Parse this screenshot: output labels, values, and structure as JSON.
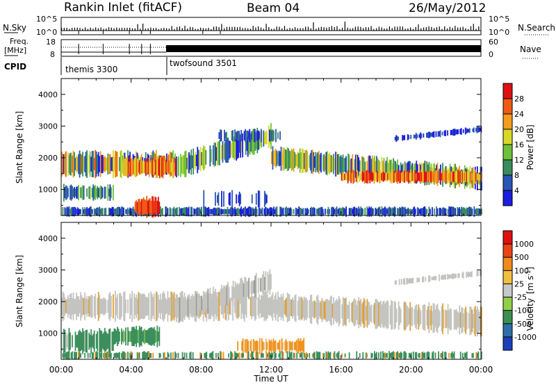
{
  "header": {
    "station": "Rankin Inlet (fitACF)",
    "beam": "Beam 04",
    "date": "26/May/2012"
  },
  "status_panels": {
    "nsky_label": "N.Sky",
    "nsearch_label": "N.Search",
    "nsky_ticks": [
      "10^5",
      "10^0"
    ],
    "nsearch_ticks": [
      "10^5",
      "10^0"
    ],
    "freq_label_1": "Freq.",
    "freq_label_2": "[MHz]",
    "freq_ticks": [
      "18",
      "8"
    ],
    "nave_label": "Nave",
    "nave_ticks": [
      "60",
      "0"
    ],
    "cpid_label": "CPID",
    "cpid_segments": [
      {
        "name": "themis 3300",
        "start_hour": 0
      },
      {
        "name": "twofsound 3501",
        "start_hour": 6
      }
    ]
  },
  "chart_data": [
    {
      "type": "heatmap",
      "title": "",
      "xlabel": "Time UT",
      "ylabel": "Slant Range [km]",
      "xlim": [
        0,
        24
      ],
      "ylim": [
        180,
        4500
      ],
      "x_ticks": [
        "00:00",
        "04:00",
        "08:00",
        "12:00",
        "16:00",
        "20:00",
        "00:00"
      ],
      "y_ticks": [
        "1000",
        "2000",
        "3000",
        "4000"
      ],
      "colorbar": {
        "label": "Power [dB]",
        "ticks": [
          "4",
          "8",
          "12",
          "16",
          "20",
          "24",
          "28"
        ],
        "range": [
          0,
          30
        ],
        "colors": [
          "#1d1dde",
          "#2a55b4",
          "#3b8c5c",
          "#6ec23a",
          "#d8d82a",
          "#f39c1e",
          "#ef5a14",
          "#dd1212"
        ]
      }
    },
    {
      "type": "heatmap",
      "title": "",
      "xlabel": "Time UT",
      "ylabel": "Slant Range [km]",
      "xlim": [
        0,
        24
      ],
      "ylim": [
        180,
        4500
      ],
      "x_ticks": [
        "00:00",
        "04:00",
        "08:00",
        "12:00",
        "16:00",
        "20:00",
        "00:00"
      ],
      "y_ticks": [
        "1000",
        "2000",
        "3000",
        "4000"
      ],
      "colorbar": {
        "label": "Velocity",
        "unit_prefix": "[m s",
        "unit_exp": "-1",
        "unit_suffix": "]",
        "ticks": [
          "1000",
          "500",
          "100",
          "25",
          "-25",
          "-100",
          "-500",
          "-1000"
        ],
        "colors": [
          "#1a3fb8",
          "#2f6ea8",
          "#3c8f50",
          "#8fcf4a",
          "#c8c8c8",
          "#f0c040",
          "#f08a1e",
          "#e84418",
          "#e01010"
        ]
      }
    }
  ],
  "colors": {
    "power_bands": [
      "#1d1dde",
      "#2a55b4",
      "#3b8c5c",
      "#6ec23a",
      "#d8d82a",
      "#f39c1e",
      "#ef5a14",
      "#dd1212"
    ],
    "velocity_grey": "#c3c3c0",
    "velocity_green": "#3c8f5c",
    "velocity_orange": "#f0921e"
  }
}
